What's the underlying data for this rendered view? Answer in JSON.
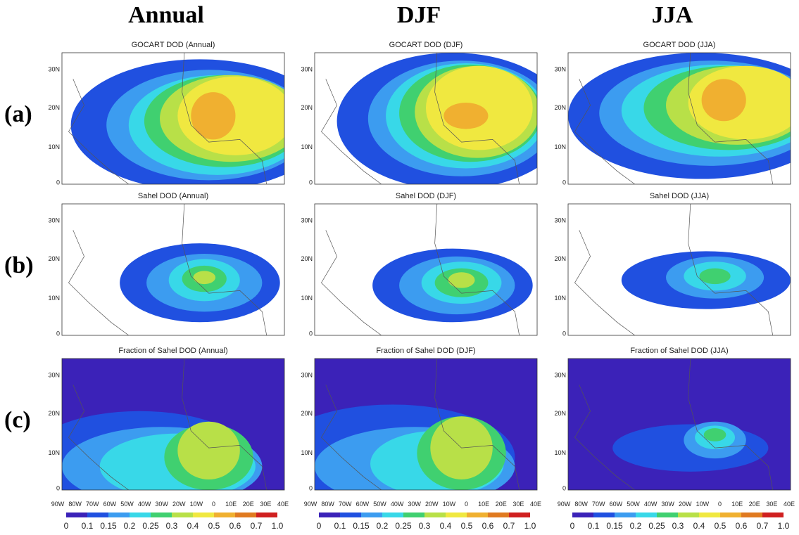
{
  "headers": [
    "Annual",
    "DJF",
    "JJA"
  ],
  "row_labels": [
    "(a)",
    "(b)",
    "(c)"
  ],
  "panels": [
    [
      "GOCART DOD (Annual)",
      "GOCART DOD (DJF)",
      "GOCART DOD (JJA)"
    ],
    [
      "Sahel DOD (Annual)",
      "Sahel DOD (DJF)",
      "Sahel DOD (JJA)"
    ],
    [
      "Fraction of Sahel DOD (Annual)",
      "Fraction of Sahel DOD (DJF)",
      "Fraction of Sahel DOD (JJA)"
    ]
  ],
  "lat_ticks": [
    "30N",
    "20N",
    "10N",
    "0"
  ],
  "lon_ticks": [
    "90W",
    "80W",
    "70W",
    "60W",
    "50W",
    "40W",
    "30W",
    "20W",
    "10W",
    "0",
    "10E",
    "20E",
    "30E",
    "40E"
  ],
  "colorbar": {
    "labels": [
      "0",
      "0.1",
      "0.15",
      "0.2",
      "0.25",
      "0.3",
      "0.4",
      "0.5",
      "0.6",
      "0.7",
      "1.0"
    ],
    "colors": [
      "#3b22b8",
      "#2050e0",
      "#3c9cf0",
      "#38d8e8",
      "#40d070",
      "#b8e048",
      "#f0e840",
      "#f0b030",
      "#e07a20",
      "#d02020"
    ]
  }
}
